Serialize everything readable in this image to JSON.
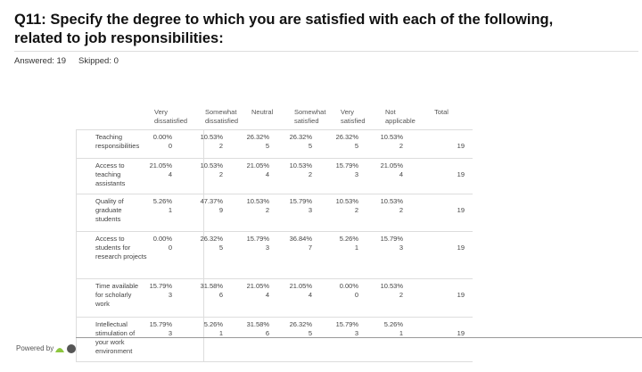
{
  "header": {
    "title": "Q11: Specify the degree to which you are satisfied with each of the following, related to job responsibilities:",
    "answered": "Answered: 19",
    "skipped": "Skipped: 0"
  },
  "table": {
    "columns": [
      "Very dissatisfied",
      "Somewhat dissatisfied",
      "Neutral",
      "Somewhat satisfied",
      "Very satisfied",
      "Not applicable",
      "Total"
    ],
    "rows": [
      {
        "label": "Teaching responsibilities",
        "cells": [
          {
            "percent": "0.00%",
            "count": 0
          },
          {
            "percent": "10.53%",
            "count": 2
          },
          {
            "percent": "26.32%",
            "count": 5
          },
          {
            "percent": "26.32%",
            "count": 5
          },
          {
            "percent": "26.32%",
            "count": 5
          },
          {
            "percent": "10.53%",
            "count": 2
          }
        ],
        "total": 19
      },
      {
        "label": "Access to teaching assistants",
        "cells": [
          {
            "percent": "21.05%",
            "count": 4
          },
          {
            "percent": "10.53%",
            "count": 2
          },
          {
            "percent": "21.05%",
            "count": 4
          },
          {
            "percent": "10.53%",
            "count": 2
          },
          {
            "percent": "15.79%",
            "count": 3
          },
          {
            "percent": "21.05%",
            "count": 4
          }
        ],
        "total": 19
      },
      {
        "label": "Quality of graduate students",
        "cells": [
          {
            "percent": "5.26%",
            "count": 1
          },
          {
            "percent": "47.37%",
            "count": 9
          },
          {
            "percent": "10.53%",
            "count": 2
          },
          {
            "percent": "15.79%",
            "count": 3
          },
          {
            "percent": "10.53%",
            "count": 2
          },
          {
            "percent": "10.53%",
            "count": 2
          }
        ],
        "total": 19
      },
      {
        "label": "Access to students for research projects",
        "cells": [
          {
            "percent": "0.00%",
            "count": 0
          },
          {
            "percent": "26.32%",
            "count": 5
          },
          {
            "percent": "15.79%",
            "count": 3
          },
          {
            "percent": "36.84%",
            "count": 7
          },
          {
            "percent": "5.26%",
            "count": 1
          },
          {
            "percent": "15.79%",
            "count": 3
          }
        ],
        "total": 19
      },
      {
        "label": "Time available for scholarly work",
        "cells": [
          {
            "percent": "15.79%",
            "count": 3
          },
          {
            "percent": "31.58%",
            "count": 6
          },
          {
            "percent": "21.05%",
            "count": 4
          },
          {
            "percent": "21.05%",
            "count": 4
          },
          {
            "percent": "0.00%",
            "count": 0
          },
          {
            "percent": "10.53%",
            "count": 2
          }
        ],
        "total": 19
      },
      {
        "label": "Intellectual stimulation of your work environment",
        "cells": [
          {
            "percent": "15.79%",
            "count": 3
          },
          {
            "percent": "5.26%",
            "count": 1
          },
          {
            "percent": "31.58%",
            "count": 6
          },
          {
            "percent": "26.32%",
            "count": 5
          },
          {
            "percent": "15.79%",
            "count": 3
          },
          {
            "percent": "5.26%",
            "count": 1
          }
        ],
        "total": 19
      }
    ]
  },
  "footer": {
    "powered": "Powered by"
  }
}
